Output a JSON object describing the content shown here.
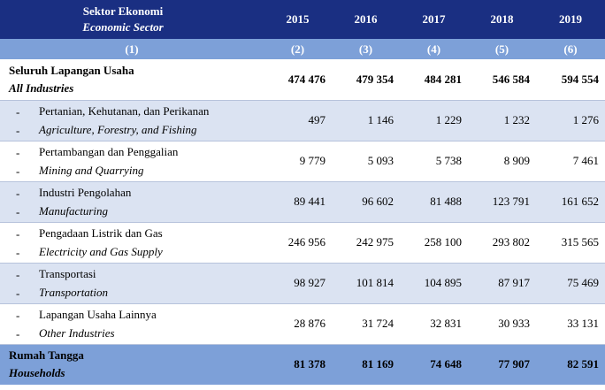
{
  "header": {
    "sector_id": "Sektor Ekonomi",
    "sector_en": "Economic Sector",
    "years": [
      "2015",
      "2016",
      "2017",
      "2018",
      "2019"
    ]
  },
  "column_numbers": [
    "(1)",
    "(2)",
    "(3)",
    "(4)",
    "(5)",
    "(6)"
  ],
  "total": {
    "label_id": "Seluruh Lapangan Usaha",
    "label_en": "All Industries",
    "values": [
      "474 476",
      "479 354",
      "484 281",
      "546 584",
      "594 554"
    ]
  },
  "rows": [
    {
      "label_id": "Pertanian, Kehutanan, dan Perikanan",
      "label_en": "Agriculture, Forestry, and Fishing",
      "values": [
        "497",
        "1 146",
        "1 229",
        "1 232",
        "1 276"
      ]
    },
    {
      "label_id": "Pertambangan dan Penggalian",
      "label_en": "Mining and Quarrying",
      "values": [
        "9 779",
        "5 093",
        "5 738",
        "8 909",
        "7 461"
      ]
    },
    {
      "label_id": "Industri Pengolahan",
      "label_en": "Manufacturing",
      "values": [
        "89 441",
        "96 602",
        "81 488",
        "123 791",
        "161 652"
      ]
    },
    {
      "label_id": "Pengadaan Listrik dan Gas",
      "label_en": "Electricity and Gas Supply",
      "values": [
        "246 956",
        "242 975",
        "258 100",
        "293 802",
        "315 565"
      ]
    },
    {
      "label_id": "Transportasi",
      "label_en": "Transportation",
      "values": [
        "98 927",
        "101 814",
        "104 895",
        "87 917",
        "75 469"
      ]
    },
    {
      "label_id": "Lapangan Usaha Lainnya",
      "label_en": "Other Industries",
      "values": [
        "28 876",
        "31 724",
        "32 831",
        "30 933",
        "33 131"
      ]
    }
  ],
  "dash": "-",
  "households": {
    "label_id": "Rumah Tangga",
    "label_en": "Households",
    "values": [
      "81 378",
      "81 169",
      "74 648",
      "77 907",
      "82 591"
    ]
  }
}
